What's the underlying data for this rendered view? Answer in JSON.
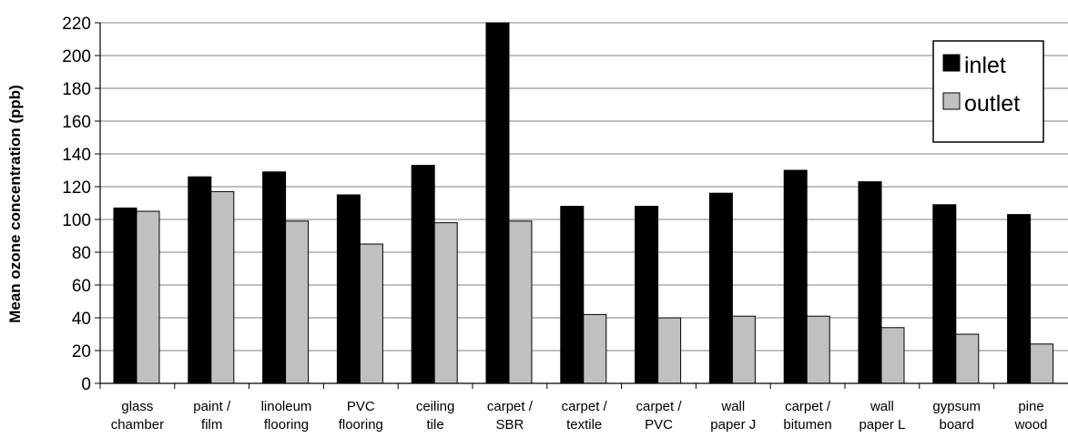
{
  "chart_data": {
    "type": "bar",
    "ylabel": "Mean ozone concentration (ppb)",
    "xlabel": "",
    "title": "",
    "ylim": [
      0,
      220
    ],
    "yticks": [
      0,
      20,
      40,
      60,
      80,
      100,
      120,
      140,
      160,
      180,
      200,
      220
    ],
    "grid": true,
    "legend_position": "top-right",
    "categories": [
      [
        "glass",
        "chamber"
      ],
      [
        "paint /",
        "film"
      ],
      [
        "linoleum",
        "flooring"
      ],
      [
        "PVC",
        "flooring"
      ],
      [
        "ceiling",
        "tile"
      ],
      [
        "carpet /",
        "SBR"
      ],
      [
        "carpet /",
        "textile"
      ],
      [
        "carpet /",
        "PVC"
      ],
      [
        "wall",
        "paper J"
      ],
      [
        "carpet /",
        "bitumen"
      ],
      [
        "wall",
        "paper L"
      ],
      [
        "gypsum",
        "board"
      ],
      [
        "pine",
        "wood"
      ]
    ],
    "series": [
      {
        "name": "inlet",
        "color": "#000000",
        "values": [
          107,
          126,
          129,
          115,
          133,
          220,
          108,
          108,
          116,
          130,
          123,
          109,
          103
        ]
      },
      {
        "name": "outlet",
        "color": "#c0c0c0",
        "values": [
          105,
          117,
          99,
          85,
          98,
          99,
          42,
          40,
          41,
          41,
          34,
          30,
          24
        ]
      }
    ]
  }
}
